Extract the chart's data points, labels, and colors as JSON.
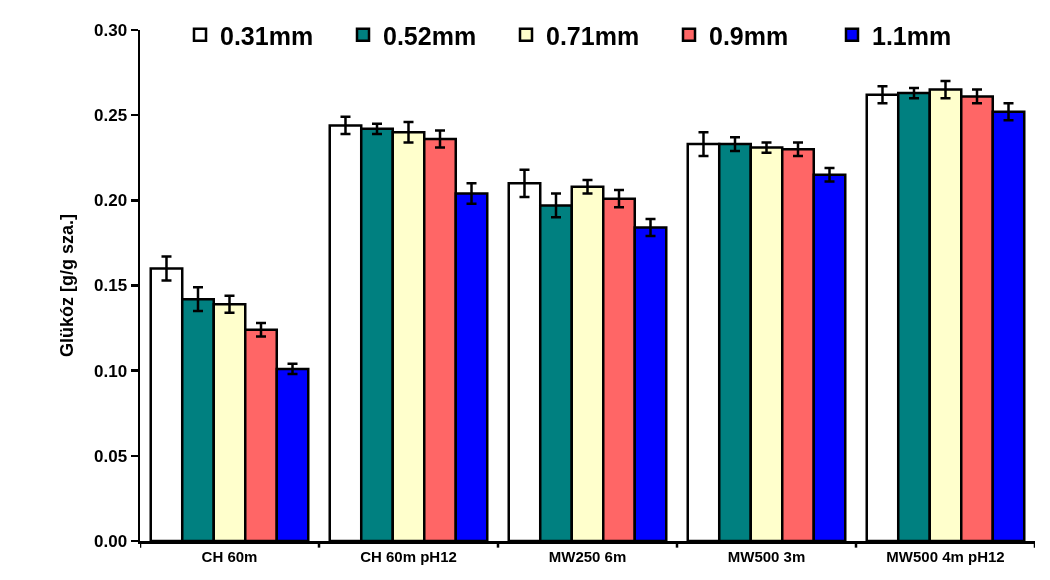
{
  "chart_data": {
    "type": "bar",
    "ylabel": "Glükóz [g/g sza.]",
    "categories": [
      "CH 60m",
      "CH 60m pH12",
      "MW250 6m",
      "MW500 3m",
      "MW500 4m pH12"
    ],
    "series": [
      {
        "name": "0.31mm",
        "color": "#ffffff",
        "values": [
          0.16,
          0.244,
          0.21,
          0.233,
          0.262
        ],
        "errors": [
          0.007,
          0.005,
          0.008,
          0.007,
          0.005
        ]
      },
      {
        "name": "0.52mm",
        "color": "#008080",
        "values": [
          0.142,
          0.242,
          0.197,
          0.233,
          0.263
        ],
        "errors": [
          0.007,
          0.003,
          0.007,
          0.004,
          0.003
        ]
      },
      {
        "name": "0.71mm",
        "color": "#ffffcc",
        "values": [
          0.139,
          0.24,
          0.208,
          0.231,
          0.265
        ],
        "errors": [
          0.005,
          0.006,
          0.004,
          0.003,
          0.005
        ]
      },
      {
        "name": "0.9mm",
        "color": "#ff6666",
        "values": [
          0.124,
          0.236,
          0.201,
          0.23,
          0.261
        ],
        "errors": [
          0.004,
          0.005,
          0.005,
          0.004,
          0.004
        ]
      },
      {
        "name": "1.1mm",
        "color": "#0000ff",
        "values": [
          0.101,
          0.204,
          0.184,
          0.215,
          0.252
        ],
        "errors": [
          0.003,
          0.006,
          0.005,
          0.004,
          0.005
        ]
      }
    ],
    "ylim": [
      0,
      0.3
    ],
    "yticks": [
      {
        "value": 0,
        "label": "0.00"
      },
      {
        "value": 0.05,
        "label": "0.05"
      },
      {
        "value": 0.1,
        "label": "0.10"
      },
      {
        "value": 0.15,
        "label": "0.15"
      },
      {
        "value": 0.2,
        "label": "0.20"
      },
      {
        "value": 0.25,
        "label": "0.25"
      },
      {
        "value": 0.3,
        "label": "0.30"
      }
    ],
    "grid": false,
    "legend": "top"
  }
}
